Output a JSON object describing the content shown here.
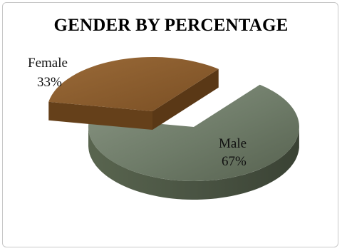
{
  "chart_data": {
    "type": "pie",
    "title": "GENDER BY PERCENTAGE",
    "categories": [
      "Female",
      "Male"
    ],
    "values": [
      33,
      67
    ],
    "labels": [
      "33%",
      "67%"
    ],
    "exploded": "Female",
    "colors": {
      "Female": "#8a5a2a",
      "Male": "#6d7a66"
    },
    "style": "3d-exploded-pie"
  }
}
